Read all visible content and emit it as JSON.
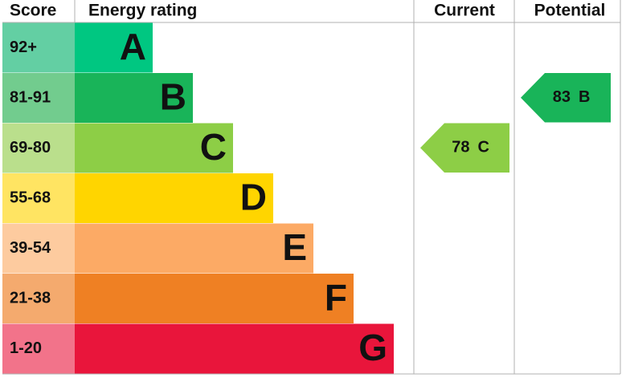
{
  "headers": {
    "score": "Score",
    "rating": "Energy rating",
    "current": "Current",
    "potential": "Potential"
  },
  "bands": [
    {
      "score": "92+",
      "letter": "A",
      "color": "#00c781",
      "light": "#63cfa3"
    },
    {
      "score": "81-91",
      "letter": "B",
      "color": "#19b459",
      "light": "#72cc8e"
    },
    {
      "score": "69-80",
      "letter": "C",
      "color": "#8dce46",
      "light": "#badf8c"
    },
    {
      "score": "55-68",
      "letter": "D",
      "color": "#ffd500",
      "light": "#ffe462"
    },
    {
      "score": "39-54",
      "letter": "E",
      "color": "#fcaa65",
      "light": "#fdcb9f"
    },
    {
      "score": "21-38",
      "letter": "F",
      "color": "#ef8023",
      "light": "#f4aa6e"
    },
    {
      "score": "1-20",
      "letter": "G",
      "color": "#e9153b",
      "light": "#f2738a"
    }
  ],
  "current": {
    "score": 78,
    "rating": "C"
  },
  "potential": {
    "score": 83,
    "rating": "B"
  }
}
